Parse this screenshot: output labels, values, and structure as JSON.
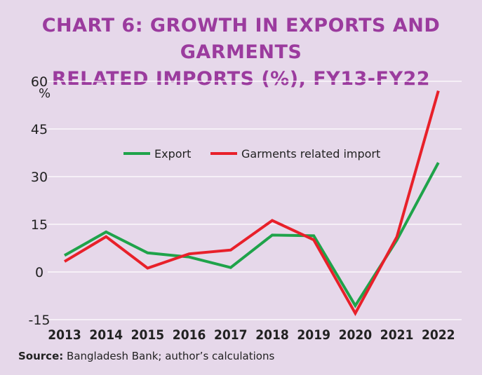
{
  "title_lines": [
    "CHART 6: GROWTH IN EXPORTS AND GARMENTS",
    "RELATED IMPORTS (%), FY13-FY22"
  ],
  "source": {
    "label": "Source:",
    "text": "Bangladesh Bank; author’s calculations"
  },
  "colors": {
    "export": "#1fa34a",
    "garments": "#e8202a",
    "title": "#9b3b9e",
    "background": "#e6d8ea"
  },
  "chart_data": {
    "type": "line",
    "title": "CHART 6: GROWTH IN EXPORTS AND GARMENTS RELATED IMPORTS (%), FY13-FY22",
    "ylabel": "%",
    "xlabel": "",
    "categories": [
      "2013",
      "2014",
      "2015",
      "2016",
      "2017",
      "2018",
      "2019",
      "2020",
      "2021",
      "2022"
    ],
    "y_ticks": [
      60,
      45,
      30,
      15,
      0,
      -15
    ],
    "ylim": [
      -15,
      60
    ],
    "grid": true,
    "legend_position": "top-center",
    "series": [
      {
        "name": "Export",
        "color": "#1fa34a",
        "values": [
          5.2,
          12.6,
          6.0,
          4.7,
          1.4,
          11.6,
          11.4,
          -10.6,
          10.0,
          34.4
        ]
      },
      {
        "name": "Garments related import",
        "color": "#e8202a",
        "values": [
          3.3,
          11.1,
          1.2,
          5.7,
          6.9,
          16.2,
          10.1,
          -13.0,
          11.0,
          57.0
        ]
      }
    ]
  }
}
